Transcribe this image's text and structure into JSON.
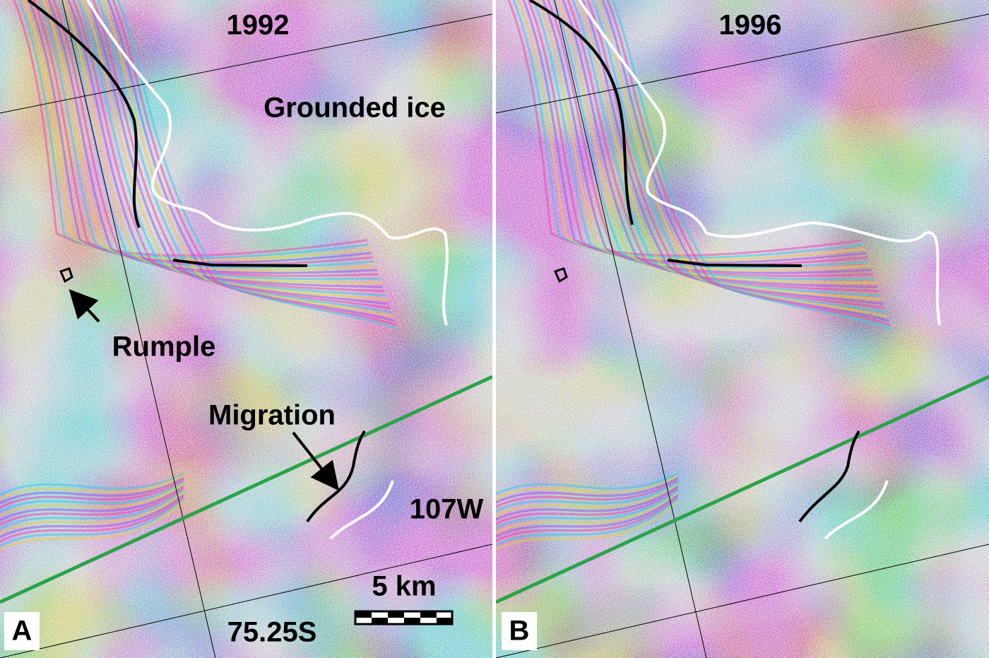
{
  "panels": [
    {
      "label": "A",
      "year": "1992",
      "annotations": {
        "grounded": "Grounded ice",
        "rumple": "Rumple",
        "migration": "Migration",
        "longitude": "107W",
        "latitude": "75.25S"
      },
      "scale_bar": "5 km"
    },
    {
      "label": "B",
      "year": "1996"
    }
  ]
}
